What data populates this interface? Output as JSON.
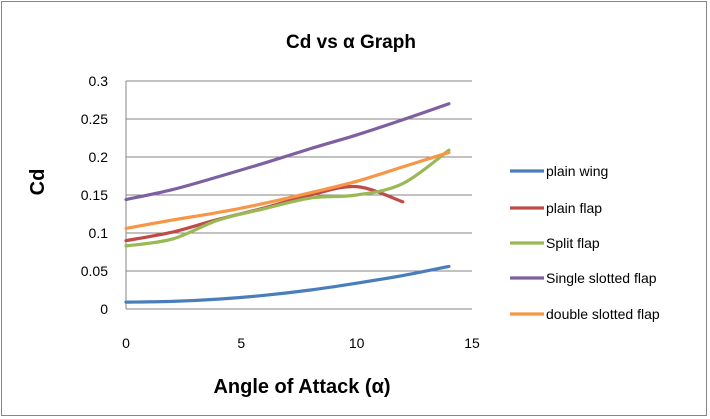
{
  "chart_data": {
    "type": "line",
    "title": "Cd vs α Graph",
    "xlabel": "Angle of Attack (α)",
    "ylabel": "Cd",
    "xlim": [
      0,
      15
    ],
    "ylim": [
      0,
      0.3
    ],
    "x_ticks": [
      "0",
      "5",
      "10",
      "15"
    ],
    "y_ticks": [
      "0",
      "0.05",
      "0.1",
      "0.15",
      "0.2",
      "0.25",
      "0.3"
    ],
    "grid": "horizontal",
    "legend_position": "right",
    "series": [
      {
        "name": "plain wing",
        "color": "#4A7EBB",
        "x": [
          0,
          2,
          4,
          6,
          8,
          10,
          12,
          14
        ],
        "y": [
          0.009,
          0.01,
          0.013,
          0.018,
          0.025,
          0.034,
          0.044,
          0.056
        ]
      },
      {
        "name": "plain flap",
        "color": "#BE4B48",
        "x": [
          0,
          2,
          4,
          6,
          8,
          10,
          12
        ],
        "y": [
          0.09,
          0.101,
          0.118,
          0.133,
          0.15,
          0.161,
          0.141
        ]
      },
      {
        "name": "Split flap",
        "color": "#98B954",
        "x": [
          0,
          2,
          4,
          6,
          8,
          10,
          12,
          14
        ],
        "y": [
          0.083,
          0.092,
          0.117,
          0.132,
          0.146,
          0.15,
          0.165,
          0.209
        ]
      },
      {
        "name": "Single slotted flap",
        "color": "#7D60A0",
        "x": [
          0,
          2,
          4,
          6,
          8,
          10,
          12,
          14
        ],
        "y": [
          0.144,
          0.157,
          0.174,
          0.192,
          0.211,
          0.229,
          0.249,
          0.27
        ]
      },
      {
        "name": "double slotted flap",
        "color": "#F79646",
        "x": [
          0,
          2,
          4,
          6,
          8,
          10,
          12,
          14
        ],
        "y": [
          0.106,
          0.117,
          0.127,
          0.139,
          0.153,
          0.168,
          0.187,
          0.206
        ]
      }
    ]
  }
}
